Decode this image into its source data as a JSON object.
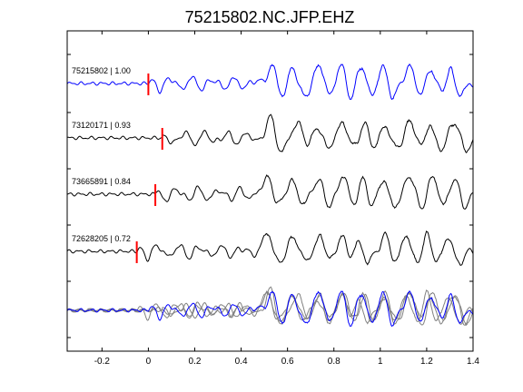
{
  "chart_data": {
    "type": "line",
    "title": "75215802.NC.JFP.EHZ",
    "xlabel": "",
    "ylabel": "",
    "xlim": [
      -0.35,
      1.4
    ],
    "xticks": [
      -0.2,
      0,
      0.2,
      0.4,
      0.6,
      0.8,
      1,
      1.2,
      1.4
    ],
    "xtick_labels": [
      "-0.2",
      "0",
      "0.2",
      "0.4",
      "0.6",
      "0.8",
      "1",
      "1.2",
      "1.4"
    ],
    "grid": false,
    "colors": {
      "master": "#0000ff",
      "other": "#000000",
      "overlay_other": "#808080",
      "pick": "#ff0000"
    },
    "series": [
      {
        "name": "75215802 | 1.00",
        "pick_time": 0.0,
        "color": "master",
        "approx_peak_times": [
          0.53,
          0.62,
          0.74,
          0.83,
          0.92,
          1.01,
          1.13,
          1.22,
          1.3
        ]
      },
      {
        "name": "73120171 | 0.93",
        "pick_time": 0.06,
        "color": "other",
        "approx_peak_times": [
          0.53,
          0.65,
          0.73,
          0.84,
          0.93,
          1.02,
          1.13,
          1.21,
          1.32
        ]
      },
      {
        "name": "73665891 | 0.84",
        "pick_time": 0.03,
        "color": "other",
        "approx_peak_times": [
          0.52,
          0.62,
          0.73,
          0.84,
          0.92,
          1.01,
          1.13,
          1.23,
          1.32
        ]
      },
      {
        "name": "72628205 | 0.72",
        "pick_time": -0.05,
        "color": "other",
        "approx_peak_times": [
          0.52,
          0.63,
          0.74,
          0.83,
          0.9,
          1.02,
          1.11,
          1.2,
          1.29
        ]
      }
    ],
    "overlay": {
      "description": "stack of all traces",
      "order": [
        1,
        2,
        3,
        0
      ]
    }
  }
}
